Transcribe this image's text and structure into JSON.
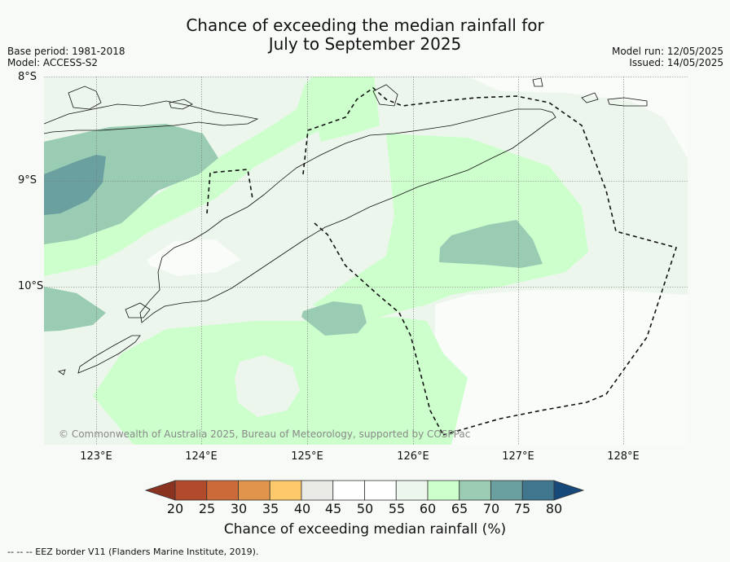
{
  "title_line1": "Chance of exceeding the median rainfall for",
  "title_line2": "July to September 2025",
  "meta_left": {
    "base_period": "Base period: 1981-2018",
    "model": "Model: ACCESS-S2"
  },
  "meta_right": {
    "model_run": "Model run: 12/05/2025",
    "issued": "Issued: 14/05/2025"
  },
  "lat_labels": [
    "8°S",
    "9°S",
    "10°S"
  ],
  "lon_labels": [
    "123°E",
    "124°E",
    "125°E",
    "126°E",
    "127°E",
    "128°E"
  ],
  "copyright": "© Commonwealth of Australia 2025, Bureau of Meteorology, supported by COSPPac",
  "colorbar": {
    "ticks": [
      "20",
      "25",
      "30",
      "35",
      "40",
      "45",
      "50",
      "55",
      "60",
      "65",
      "70",
      "75",
      "80"
    ],
    "colors": [
      "#b24a2c",
      "#cc6a3a",
      "#e0944c",
      "#fdc96a",
      "#eaeae6",
      "#ffffff",
      "#ffffff",
      "#edf6ec",
      "#ccffcc",
      "#99ccb3",
      "#6aa0a0",
      "#40778f"
    ],
    "under_color": "#8a3320",
    "over_color": "#16497a",
    "label": "Chance of exceeding median rainfall (%)"
  },
  "footnote": "--  --  -- EEZ border V11 (Flanders Marine Institute, 2019)."
}
